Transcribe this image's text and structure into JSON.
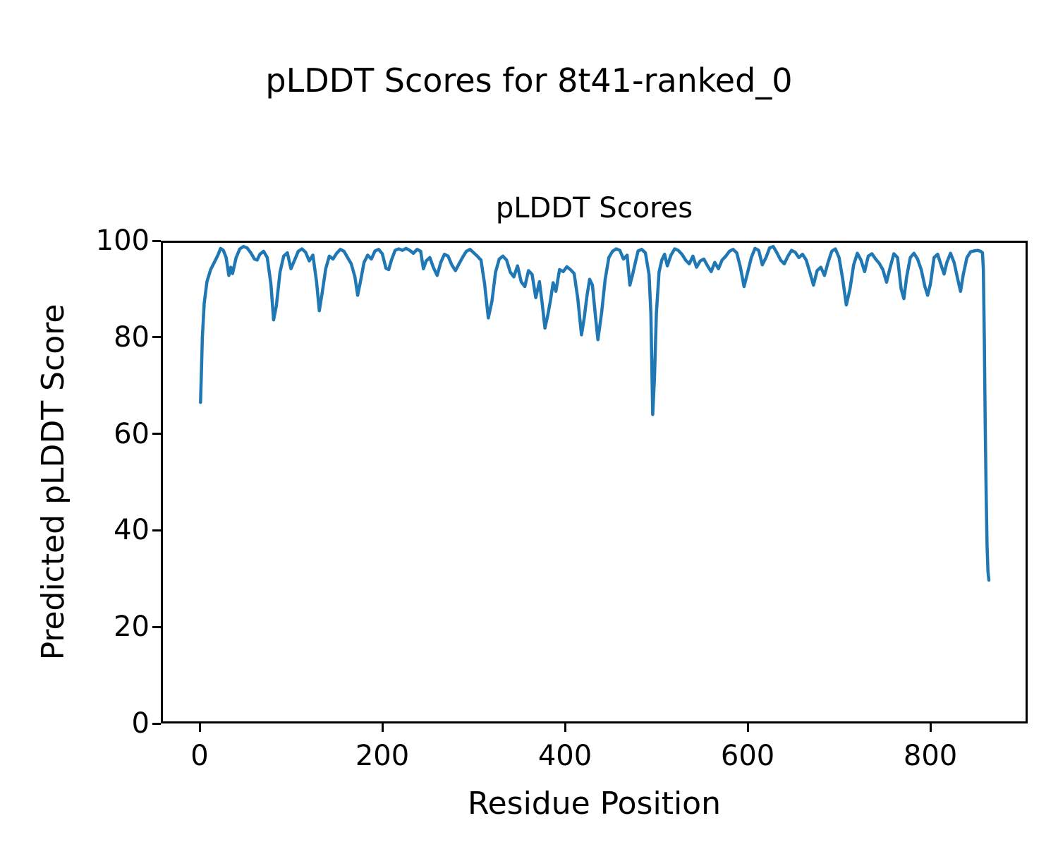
{
  "figure": {
    "suptitle": "pLDDT Scores for 8t41-ranked_0"
  },
  "chart_data": {
    "type": "line",
    "title": "pLDDT Scores",
    "xlabel": "Residue Position",
    "ylabel": "Predicted pLDDT Score",
    "series_name": "pLDDT",
    "line_color": "#1f77b4",
    "grid": false,
    "legend": false,
    "xlim": [
      -42.5,
      906.5
    ],
    "ylim": [
      0,
      100
    ],
    "xticks": [
      0,
      200,
      400,
      600,
      800
    ],
    "yticks": [
      0,
      20,
      40,
      60,
      80,
      100
    ],
    "x": [
      1,
      2,
      3,
      5,
      8,
      12,
      16,
      20,
      23,
      26,
      29,
      32,
      34,
      36,
      40,
      44,
      48,
      52,
      56,
      60,
      63,
      66,
      70,
      74,
      78,
      81,
      84,
      88,
      92,
      96,
      100,
      104,
      108,
      112,
      116,
      120,
      124,
      128,
      131,
      134,
      138,
      142,
      146,
      150,
      154,
      158,
      162,
      166,
      170,
      173,
      176,
      180,
      184,
      188,
      192,
      196,
      200,
      204,
      207,
      210,
      214,
      218,
      222,
      226,
      230,
      234,
      238,
      242,
      245,
      248,
      252,
      256,
      260,
      264,
      268,
      272,
      276,
      280,
      284,
      288,
      292,
      296,
      300,
      304,
      308,
      312,
      316,
      320,
      324,
      328,
      332,
      336,
      340,
      344,
      348,
      352,
      356,
      360,
      364,
      368,
      372,
      375,
      378,
      381,
      384,
      387,
      390,
      394,
      398,
      402,
      406,
      410,
      414,
      418,
      421,
      424,
      427,
      430,
      433,
      436,
      440,
      444,
      448,
      452,
      456,
      460,
      464,
      468,
      471,
      474,
      477,
      480,
      484,
      488,
      492,
      494,
      496,
      498,
      500,
      503,
      506,
      509,
      512,
      516,
      520,
      524,
      528,
      532,
      536,
      540,
      544,
      548,
      552,
      556,
      560,
      564,
      568,
      572,
      576,
      580,
      584,
      588,
      592,
      596,
      600,
      604,
      608,
      612,
      616,
      620,
      624,
      628,
      632,
      636,
      640,
      644,
      648,
      652,
      656,
      660,
      664,
      668,
      672,
      676,
      680,
      684,
      688,
      692,
      696,
      700,
      704,
      708,
      712,
      716,
      720,
      724,
      728,
      732,
      736,
      740,
      744,
      748,
      752,
      756,
      760,
      764,
      768,
      771,
      774,
      778,
      782,
      786,
      790,
      794,
      797,
      800,
      804,
      808,
      812,
      815,
      818,
      822,
      826,
      830,
      833,
      836,
      840,
      844,
      848,
      852,
      855,
      857,
      858,
      859,
      860,
      861,
      862,
      863,
      864
    ],
    "y": [
      66.5,
      73,
      80,
      87,
      91.5,
      94,
      95.5,
      97,
      98.4,
      98,
      96.5,
      92.8,
      94.5,
      93.2,
      96.5,
      98.3,
      98.8,
      98.5,
      97.5,
      96.2,
      96,
      97.2,
      97.8,
      96.5,
      91,
      83.6,
      86.5,
      93.5,
      96.8,
      97.5,
      94.2,
      96,
      97.8,
      98.3,
      97.6,
      95.8,
      97,
      91.5,
      85.5,
      89,
      94.2,
      96.8,
      96.2,
      97.4,
      98.2,
      97.8,
      96.5,
      95.2,
      92.5,
      88.7,
      91.5,
      95.5,
      97,
      96.2,
      97.9,
      98.2,
      97.3,
      94.3,
      94,
      96,
      98,
      98.3,
      98,
      98.4,
      98,
      97.4,
      98.2,
      97.8,
      94.2,
      95.8,
      96.5,
      94.4,
      92.8,
      95.5,
      97.2,
      96.8,
      95,
      93.8,
      95.2,
      96.6,
      97.8,
      98.2,
      97.5,
      96.8,
      96,
      91,
      84,
      87.5,
      93.5,
      96.2,
      96.8,
      96,
      93.5,
      92.5,
      94.8,
      91.5,
      90.5,
      93.8,
      93,
      88.2,
      91.5,
      87,
      81.9,
      84.5,
      87.5,
      91.3,
      89.5,
      94,
      93.6,
      94.6,
      94,
      93.2,
      88,
      80.5,
      84,
      88.5,
      92,
      90.8,
      85,
      79.5,
      85,
      92,
      96.5,
      97.8,
      98.3,
      98,
      96.2,
      97,
      90.8,
      93,
      95.5,
      97.9,
      98.2,
      97.5,
      93,
      85,
      64,
      72,
      85,
      93.5,
      96,
      97.2,
      94.8,
      97,
      98.3,
      98,
      97.2,
      96,
      95.2,
      96.8,
      94.5,
      95.8,
      96.2,
      94.8,
      93.6,
      95.5,
      94.2,
      96,
      96.8,
      97.8,
      98.2,
      97.5,
      94.5,
      90.5,
      93.5,
      96.5,
      98.4,
      98,
      95,
      96.5,
      98.5,
      98.8,
      97.5,
      96,
      95.2,
      96.8,
      98,
      97.6,
      96.5,
      97.2,
      96,
      93.5,
      90.8,
      93.8,
      94.5,
      92.8,
      95.5,
      97.8,
      98.3,
      96.5,
      92,
      86.7,
      90,
      95,
      97.4,
      96,
      93.6,
      96.8,
      97.3,
      96.2,
      95.3,
      94,
      91.4,
      94.5,
      97.3,
      96.5,
      90,
      88,
      92.5,
      96.5,
      97.4,
      96.2,
      94,
      90.5,
      88.7,
      91,
      96.5,
      97.2,
      94.8,
      93.1,
      95.5,
      97.4,
      95.5,
      92,
      89.5,
      93,
      96.5,
      97.7,
      97.9,
      98,
      97.8,
      97.5,
      94,
      80,
      62,
      48,
      37,
      31.5,
      29.7
    ]
  }
}
